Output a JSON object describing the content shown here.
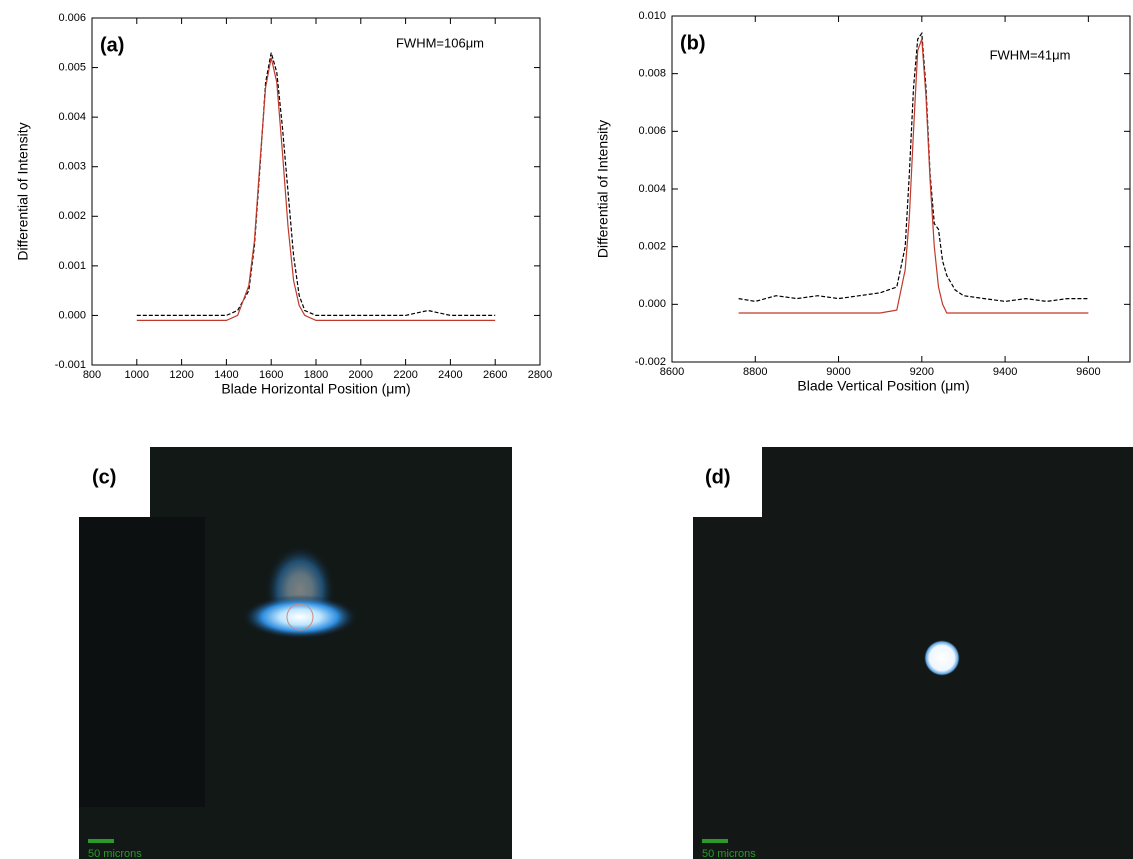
{
  "chart_data": [
    {
      "type": "line",
      "panel": "(a)",
      "annotation": "FWHM=106μm",
      "x_label": "Blade Horizontal Position (μm)",
      "y_label": "Differential of Intensity",
      "x": [
        1000,
        1100,
        1200,
        1300,
        1400,
        1450,
        1500,
        1525,
        1550,
        1575,
        1600,
        1625,
        1650,
        1675,
        1700,
        1725,
        1750,
        1800,
        1900,
        2000,
        2100,
        2200,
        2300,
        2400,
        2500,
        2600
      ],
      "series": [
        {
          "color": "#000000",
          "dashed": true,
          "values": [
            0,
            0,
            0,
            0,
            0,
            0.0001,
            0.0005,
            0.0014,
            0.003,
            0.0047,
            0.0053,
            0.0049,
            0.0038,
            0.0025,
            0.0012,
            0.0004,
            0.0001,
            0,
            0,
            0,
            0,
            0,
            0.0001,
            0,
            0,
            0
          ]
        },
        {
          "color": "#c0392b",
          "dashed": false,
          "values": [
            -0.0001,
            -0.0001,
            -0.0001,
            -0.0001,
            -0.0001,
            0,
            0.0006,
            0.0015,
            0.0031,
            0.0046,
            0.0052,
            0.0047,
            0.0033,
            0.0018,
            0.0007,
            0.0002,
            0,
            -0.0001,
            -0.0001,
            -0.0001,
            -0.0001,
            -0.0001,
            -0.0001,
            -0.0001,
            -0.0001,
            -0.0001
          ]
        }
      ],
      "xlim": [
        800,
        2800
      ],
      "xticks": [
        800,
        1000,
        1200,
        1400,
        1600,
        1800,
        2000,
        2200,
        2400,
        2600,
        2800
      ],
      "ylim": [
        -0.001,
        0.006
      ],
      "yticks": [
        {
          "value": -0.001,
          "label": "-0.001"
        },
        {
          "value": 0,
          "label": "0.000"
        },
        {
          "value": 0.001,
          "label": "0.001"
        },
        {
          "value": 0.002,
          "label": "0.002"
        },
        {
          "value": 0.003,
          "label": "0.003"
        },
        {
          "value": 0.004,
          "label": "0.004"
        },
        {
          "value": 0.005,
          "label": "0.005"
        },
        {
          "value": 0.006,
          "label": "0.006"
        }
      ]
    },
    {
      "type": "line",
      "panel": "(b)",
      "annotation": "FWHM=41μm",
      "x_label": "Blade Vertical Position (μm)",
      "y_label": "Differential of Intensity",
      "x": [
        8760,
        8800,
        8850,
        8900,
        8950,
        9000,
        9050,
        9100,
        9140,
        9160,
        9170,
        9180,
        9190,
        9200,
        9210,
        9220,
        9230,
        9240,
        9250,
        9260,
        9280,
        9300,
        9350,
        9400,
        9450,
        9500,
        9550,
        9600
      ],
      "series": [
        {
          "color": "#000000",
          "dashed": true,
          "values": [
            0.0002,
            0.0001,
            0.0003,
            0.0002,
            0.0003,
            0.0002,
            0.0003,
            0.0004,
            0.0006,
            0.002,
            0.0045,
            0.0075,
            0.0092,
            0.0094,
            0.0075,
            0.0045,
            0.0028,
            0.0026,
            0.0015,
            0.001,
            0.0005,
            0.0003,
            0.0002,
            0.0001,
            0.0002,
            0.0001,
            0.0002,
            0.0002
          ]
        },
        {
          "color": "#c0392b",
          "dashed": false,
          "values": [
            -0.0003,
            -0.0003,
            -0.0003,
            -0.0003,
            -0.0003,
            -0.0003,
            -0.0003,
            -0.0003,
            -0.0002,
            0.0012,
            0.003,
            0.006,
            0.0088,
            0.0092,
            0.0072,
            0.0043,
            0.002,
            0.0006,
            0,
            -0.0003,
            -0.0003,
            -0.0003,
            -0.0003,
            -0.0003,
            -0.0003,
            -0.0003,
            -0.0003,
            -0.0003
          ]
        }
      ],
      "xlim": [
        8600,
        9700
      ],
      "xticks": [
        8600,
        8800,
        9000,
        9200,
        9400,
        9600
      ],
      "ylim": [
        -0.002,
        0.01
      ],
      "yticks": [
        {
          "value": -0.002,
          "label": "-0.002"
        },
        {
          "value": 0,
          "label": "0.000"
        },
        {
          "value": 0.002,
          "label": "0.002"
        },
        {
          "value": 0.004,
          "label": "0.004"
        },
        {
          "value": 0.006,
          "label": "0.006"
        },
        {
          "value": 0.008,
          "label": "0.008"
        },
        {
          "value": 0.01,
          "label": "0.010"
        }
      ]
    }
  ],
  "images": [
    {
      "panel": "(c)",
      "scale_bar": "50 microns"
    },
    {
      "panel": "(d)",
      "scale_bar": "50 microns"
    }
  ]
}
